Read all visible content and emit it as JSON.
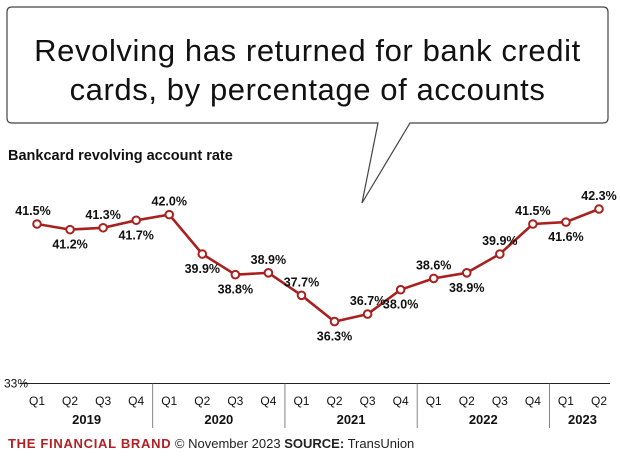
{
  "headline": "Revolving has returned for bank credit cards, by percentage of accounts",
  "footer": {
    "brand": "THE FINANCIAL BRAND",
    "date": "© November 2023",
    "source_label": "SOURCE:",
    "source": "TransUnion"
  },
  "colors": {
    "line": "#a8211f",
    "brand": "#b21f24",
    "text": "#111111",
    "axis": "#222222"
  },
  "chart_data": {
    "type": "line",
    "title": "Bankcard revolving account rate",
    "categories": [
      "Q1",
      "Q2",
      "Q3",
      "Q4",
      "Q1",
      "Q2",
      "Q3",
      "Q4",
      "Q1",
      "Q2",
      "Q3",
      "Q4",
      "Q1",
      "Q2",
      "Q3",
      "Q4",
      "Q1",
      "Q2"
    ],
    "years": [
      {
        "label": "2019",
        "start": 0,
        "end": 3
      },
      {
        "label": "2020",
        "start": 4,
        "end": 7
      },
      {
        "label": "2021",
        "start": 8,
        "end": 11
      },
      {
        "label": "2022",
        "start": 12,
        "end": 15
      },
      {
        "label": "2023",
        "start": 16,
        "end": 17
      }
    ],
    "series": [
      {
        "values": [
          41.5,
          41.2,
          41.3,
          41.7,
          42.0,
          39.9,
          38.8,
          38.9,
          37.7,
          36.3,
          36.7,
          38.0,
          38.6,
          38.9,
          39.9,
          41.5,
          41.6,
          42.3
        ],
        "labels": [
          "41.5%",
          "41.2%",
          "41.3%",
          "41.7%",
          "42.0%",
          "39.9%",
          "38.8%",
          "38.9%",
          "37.7%",
          "36.3%",
          "36.7%",
          "38.0%",
          "38.6%",
          "38.9%",
          "39.9%",
          "41.5%",
          "41.6%",
          "42.3%"
        ],
        "label_side": [
          "above",
          "below",
          "above",
          "below",
          "above",
          "below",
          "below",
          "above",
          "above",
          "below",
          "above",
          "below",
          "above",
          "below",
          "above",
          "above",
          "below",
          "above"
        ]
      }
    ],
    "ylim": [
      33,
      43.5
    ],
    "y_ticks": [
      {
        "value": 33,
        "label": "33%"
      }
    ],
    "grid": false,
    "legend": "none"
  }
}
